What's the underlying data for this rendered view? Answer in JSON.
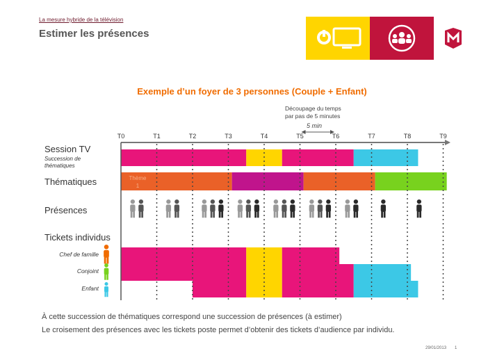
{
  "header": {
    "subtitle": "La mesure hybride de la télévision",
    "title": "Estimer les présences"
  },
  "brand_icons": [
    "power-icon",
    "tv-icon",
    "people-group-icon",
    "mediametrie-m-logo"
  ],
  "colors": {
    "pink": "#e8157a",
    "yellow": "#ffd500",
    "cyan": "#3cc8e6",
    "orange": "#ea6128",
    "magenta": "#c0148c",
    "green": "#78d21e",
    "axis": "#777777"
  },
  "diagram": {
    "title": "Exemple d’un foyer de 3 personnes (Couple + Enfant)",
    "note_line1": "Découpage du temps",
    "note_line2": "par pas de 5 minutes",
    "interval_label": "5 min",
    "ticks": [
      "T0",
      "T1",
      "T2",
      "T3",
      "T4",
      "T5",
      "T6",
      "T7",
      "T8",
      "T9"
    ],
    "rows": {
      "session": {
        "label": "Session TV",
        "sub1": "Succession de",
        "sub2": "thématiques"
      },
      "themes": {
        "label": "Thématiques",
        "segment_label_1": "Thème",
        "segment_label_2": "1"
      },
      "presences": {
        "label": "Présences"
      },
      "tickets": {
        "label": "Tickets individus"
      }
    },
    "persons": {
      "chef": "Chef de famille",
      "conjoint": "Conjoint",
      "enfant": "Enfant"
    },
    "session_segments": [
      {
        "from": 0,
        "to": 3.5,
        "color": "pink"
      },
      {
        "from": 3.5,
        "to": 4.5,
        "color": "yellow"
      },
      {
        "from": 4.5,
        "to": 6.5,
        "color": "pink"
      },
      {
        "from": 6.5,
        "to": 8.3,
        "color": "cyan"
      }
    ],
    "theme_segments": [
      {
        "from": 0,
        "to": 3.1,
        "color": "orange"
      },
      {
        "from": 3.1,
        "to": 5.1,
        "color": "magenta"
      },
      {
        "from": 5.1,
        "to": 7.1,
        "color": "orange"
      },
      {
        "from": 7.1,
        "to": 9.1,
        "color": "green"
      }
    ],
    "presence_groups": [
      {
        "at": 0.25,
        "people": [
          1,
          1
        ]
      },
      {
        "at": 1.25,
        "people": [
          1,
          1
        ]
      },
      {
        "at": 2.25,
        "people": [
          1,
          1,
          2
        ]
      },
      {
        "at": 3.25,
        "people": [
          1,
          1,
          2
        ]
      },
      {
        "at": 4.25,
        "people": [
          1,
          1,
          2
        ]
      },
      {
        "at": 5.25,
        "people": [
          1,
          1,
          2
        ]
      },
      {
        "at": 6.25,
        "people": [
          1,
          2
        ]
      },
      {
        "at": 7.25,
        "people": [
          2
        ]
      },
      {
        "at": 8.25,
        "people": [
          2
        ]
      }
    ],
    "tickets": {
      "chef": [
        {
          "from": 0,
          "to": 3.5,
          "color": "pink"
        },
        {
          "from": 3.5,
          "to": 4.5,
          "color": "yellow"
        },
        {
          "from": 4.5,
          "to": 6.1,
          "color": "pink"
        }
      ],
      "conjoint": [
        {
          "from": 0,
          "to": 3.5,
          "color": "pink"
        },
        {
          "from": 3.5,
          "to": 4.5,
          "color": "yellow"
        },
        {
          "from": 4.5,
          "to": 6.5,
          "color": "pink"
        },
        {
          "from": 6.5,
          "to": 8.1,
          "color": "cyan"
        }
      ],
      "enfant": [
        {
          "from": 2,
          "to": 3.5,
          "color": "pink"
        },
        {
          "from": 3.5,
          "to": 4.5,
          "color": "yellow"
        },
        {
          "from": 4.5,
          "to": 6.5,
          "color": "pink"
        },
        {
          "from": 6.5,
          "to": 8.3,
          "color": "cyan"
        }
      ]
    }
  },
  "footer": {
    "line1": "À cette succession de thématiques correspond une succession de présences (à estimer)",
    "line2": "Le croisement des présences avec les tickets poste permet d’obtenir des tickets d’audience par individu.",
    "date": "29/01/2013",
    "page": "1"
  }
}
